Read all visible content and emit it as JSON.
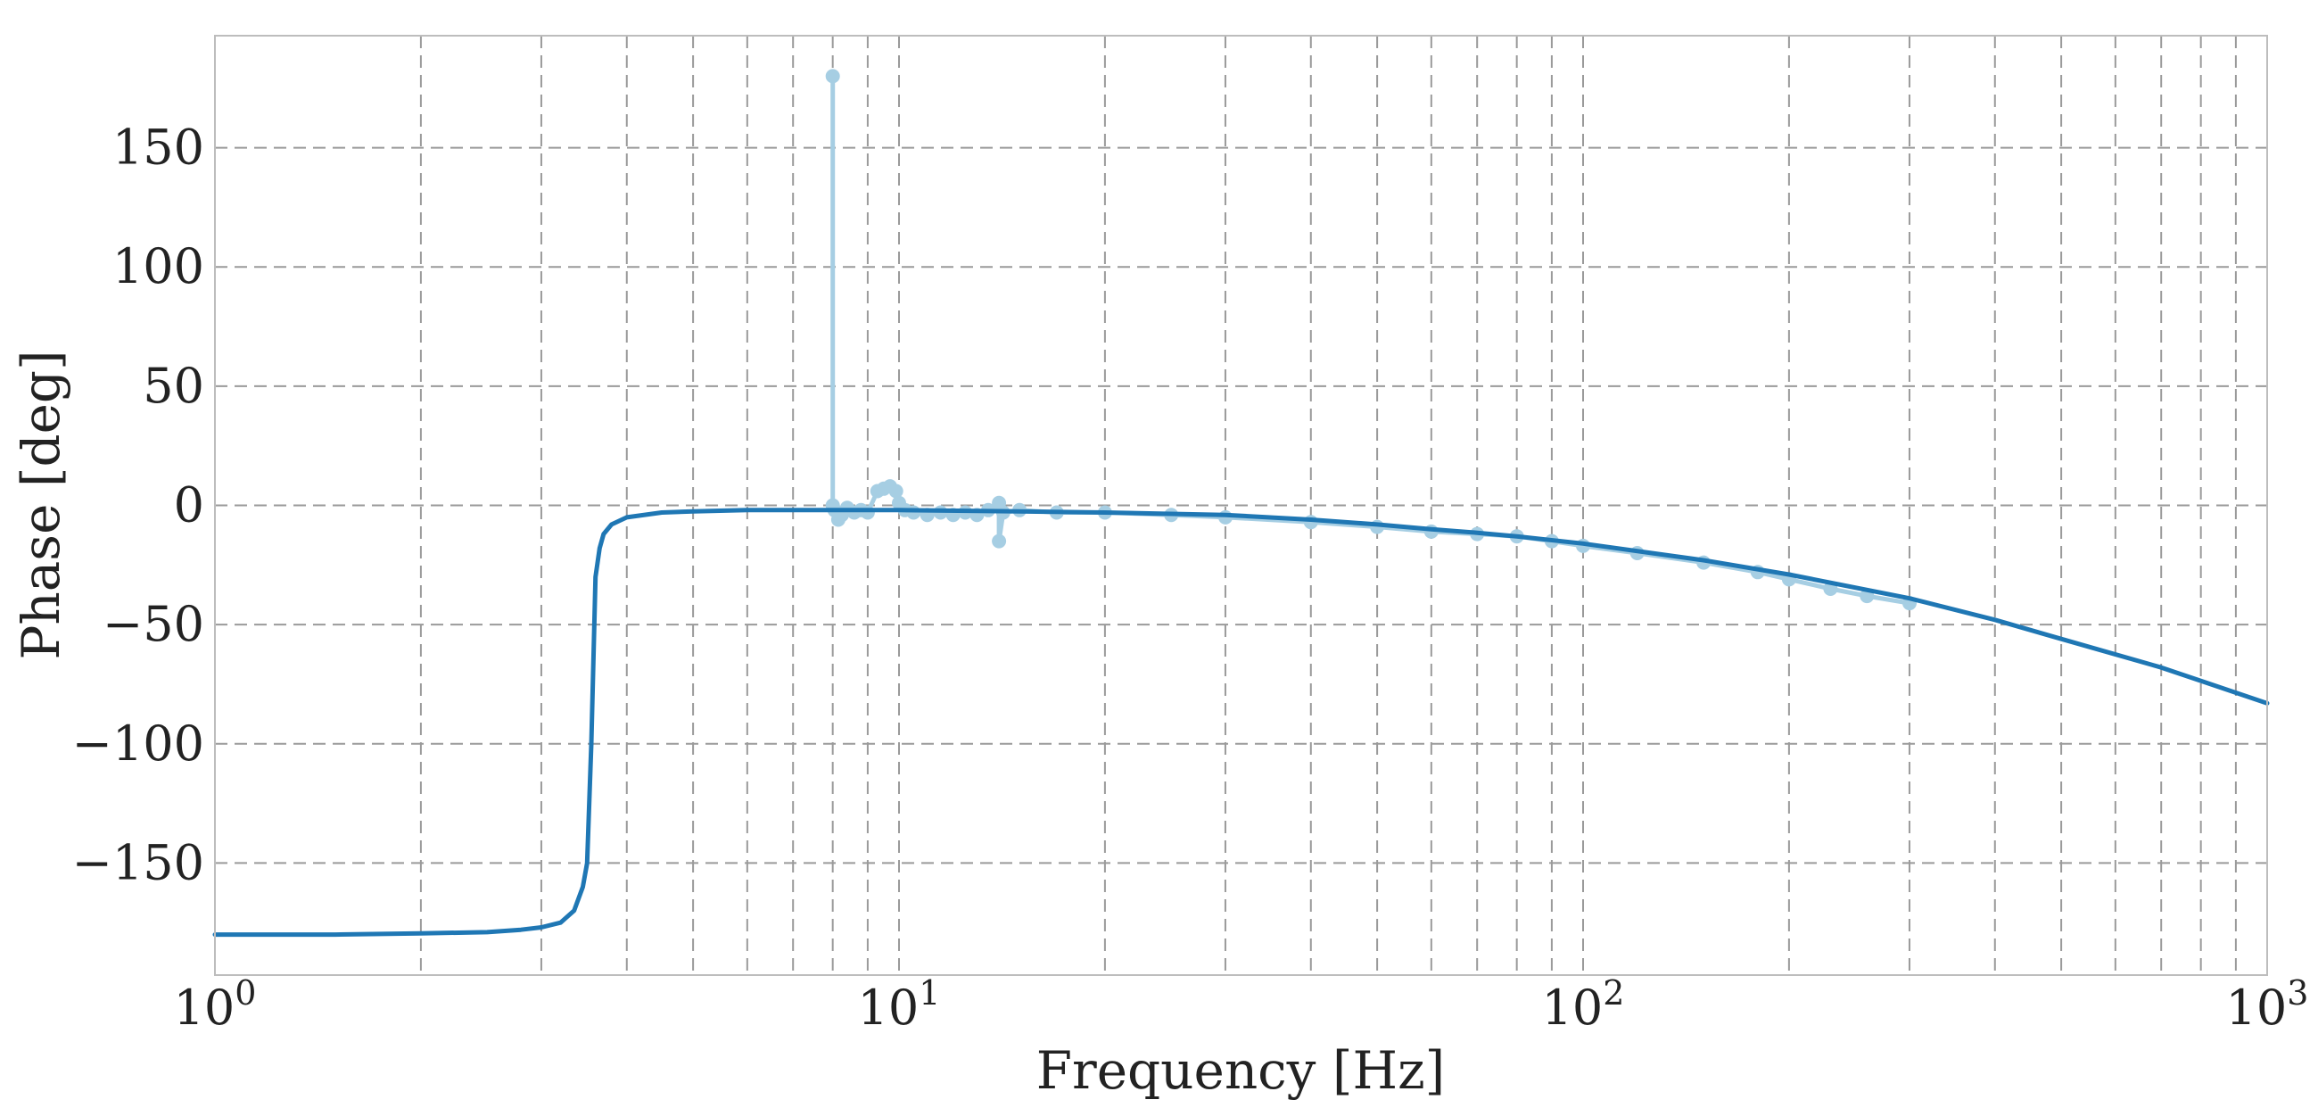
{
  "chart_data": {
    "type": "line",
    "title": "",
    "xlabel": "Frequency [Hz]",
    "ylabel": "Phase [deg]",
    "xscale": "log",
    "xlim": [
      1,
      1000
    ],
    "ylim": [
      -197,
      197
    ],
    "grid": true,
    "grid_style": "dashed",
    "x_ticks": [
      {
        "value": 1,
        "base": "10",
        "exp": "0"
      },
      {
        "value": 10,
        "base": "10",
        "exp": "1"
      },
      {
        "value": 100,
        "base": "10",
        "exp": "2"
      },
      {
        "value": 1000,
        "base": "10",
        "exp": "3"
      }
    ],
    "y_ticks": [
      {
        "value": 150,
        "label": "150"
      },
      {
        "value": 100,
        "label": "100"
      },
      {
        "value": 50,
        "label": "50"
      },
      {
        "value": 0,
        "label": "0"
      },
      {
        "value": -50,
        "label": "−50"
      },
      {
        "value": -100,
        "label": "−100"
      },
      {
        "value": -150,
        "label": "−150"
      }
    ],
    "series": [
      {
        "style": "line-markers",
        "color": "#a6cee3",
        "x": [
          8.0,
          8.0,
          8.05,
          8.15,
          8.25,
          8.4,
          8.6,
          8.8,
          9.0,
          9.3,
          9.5,
          9.7,
          9.9,
          10.0,
          10.2,
          10.5,
          11,
          11.5,
          12,
          12.5,
          13,
          13.5,
          14,
          14,
          14.2,
          15,
          17,
          20,
          25,
          30,
          40,
          50,
          60,
          70,
          80,
          90,
          100,
          120,
          150,
          180,
          200,
          230,
          260,
          300
        ],
        "y": [
          180,
          0,
          -2,
          -6,
          -4,
          -1,
          -3,
          -2,
          -3,
          6,
          7,
          8,
          6,
          1,
          -2,
          -3,
          -4,
          -3,
          -4,
          -3,
          -4,
          -2,
          1,
          -15,
          -3,
          -2,
          -3,
          -3,
          -4,
          -5,
          -7,
          -9,
          -11,
          -12,
          -13,
          -15,
          -17,
          -20,
          -24,
          -28,
          -31,
          -35,
          -38,
          -41
        ]
      },
      {
        "style": "line",
        "color": "#1f77b4",
        "x": [
          1,
          1.5,
          2,
          2.5,
          2.8,
          3.0,
          3.2,
          3.35,
          3.45,
          3.5,
          3.55,
          3.6,
          3.65,
          3.7,
          3.8,
          4.0,
          4.5,
          5,
          6,
          8,
          10,
          15,
          20,
          30,
          40,
          50,
          60,
          70,
          80,
          100,
          150,
          200,
          300,
          400,
          500,
          700,
          1000
        ],
        "y": [
          -180,
          -180,
          -179.5,
          -179,
          -178,
          -177,
          -175,
          -170,
          -160,
          -150,
          -100,
          -30,
          -18,
          -12,
          -8,
          -5,
          -3,
          -2.5,
          -2,
          -2,
          -2,
          -2.5,
          -3,
          -4,
          -6,
          -8,
          -10,
          -11.5,
          -13,
          -16,
          -23,
          -29,
          -39,
          -48,
          -56,
          -68,
          -83
        ]
      }
    ]
  }
}
